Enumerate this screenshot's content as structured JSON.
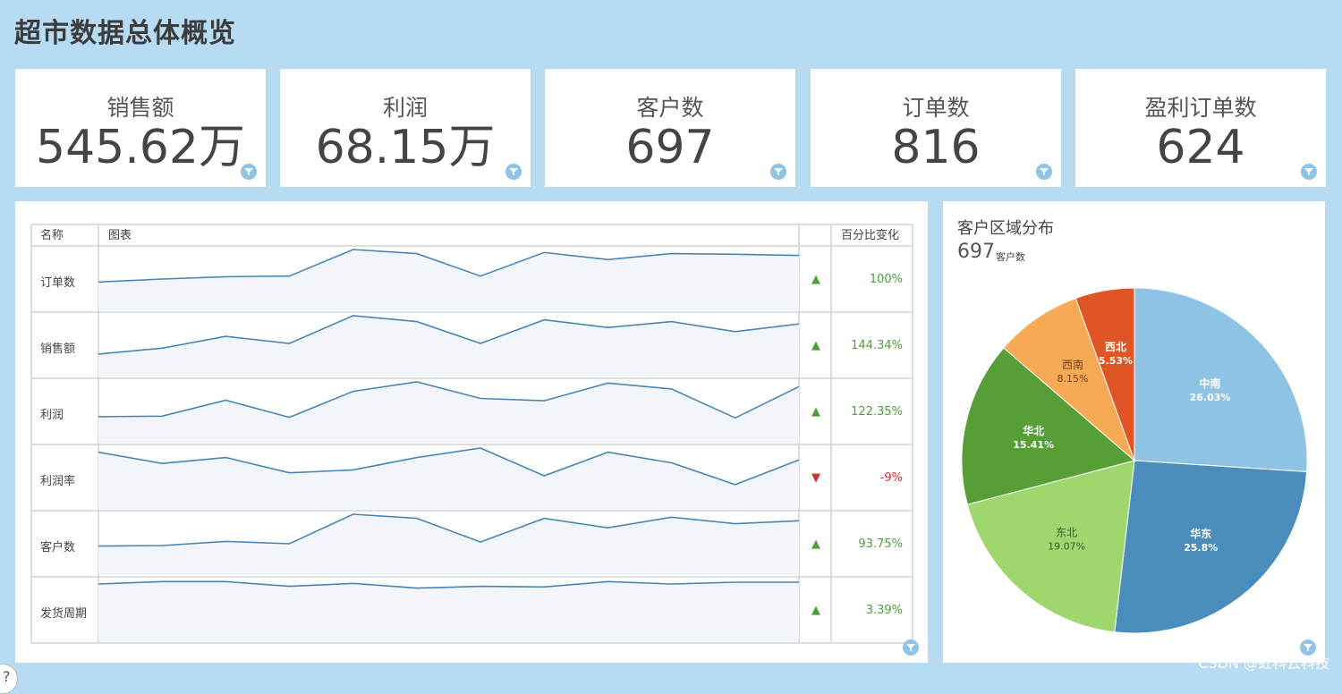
{
  "page": {
    "title": "超市数据总体概览"
  },
  "kpis": [
    {
      "label": "销售额",
      "value": "545.62万"
    },
    {
      "label": "利润",
      "value": "68.15万"
    },
    {
      "label": "客户数",
      "value": "697"
    },
    {
      "label": "订单数",
      "value": "816"
    },
    {
      "label": "盈利订单数",
      "value": "624"
    }
  ],
  "trend_table": {
    "headers": {
      "name": "名称",
      "chart": "图表",
      "change": "百分比变化"
    },
    "rows": [
      {
        "name": "订单数",
        "direction": "up",
        "arrow": "▲",
        "change": "100%",
        "points": [
          0.45,
          0.5,
          0.54,
          0.55,
          1.0,
          0.93,
          0.55,
          0.95,
          0.83,
          0.93,
          0.92,
          0.9
        ]
      },
      {
        "name": "销售额",
        "direction": "up",
        "arrow": "▲",
        "change": "144.34%",
        "points": [
          0.35,
          0.45,
          0.65,
          0.53,
          1.0,
          0.9,
          0.53,
          0.93,
          0.8,
          0.9,
          0.73,
          0.86
        ]
      },
      {
        "name": "利润",
        "direction": "up",
        "arrow": "▲",
        "change": "122.35%",
        "points": [
          0.41,
          0.42,
          0.69,
          0.4,
          0.84,
          1.0,
          0.72,
          0.68,
          0.98,
          0.88,
          0.39,
          0.92
        ]
      },
      {
        "name": "利润率",
        "direction": "down",
        "arrow": "▼",
        "change": "-9%",
        "points": [
          0.93,
          0.74,
          0.84,
          0.58,
          0.63,
          0.84,
          1.0,
          0.53,
          0.93,
          0.75,
          0.38,
          0.8
        ]
      },
      {
        "name": "客户数",
        "direction": "up",
        "arrow": "▲",
        "change": "93.75%",
        "points": [
          0.46,
          0.47,
          0.54,
          0.5,
          1.0,
          0.93,
          0.53,
          0.93,
          0.77,
          0.95,
          0.84,
          0.89
        ]
      },
      {
        "name": "发货周期",
        "direction": "up",
        "arrow": "▲",
        "change": "3.39%",
        "points": [
          0.94,
          0.98,
          0.98,
          0.9,
          0.95,
          0.87,
          0.9,
          0.89,
          0.98,
          0.94,
          0.97,
          0.97
        ]
      }
    ]
  },
  "chart_data": {
    "type": "pie",
    "title": "客户区域分布",
    "total": "697",
    "total_label": "客户数",
    "slices": [
      {
        "name": "中南",
        "pct": 26.03,
        "label": "26.03%",
        "color": "#8ec3e6"
      },
      {
        "name": "华东",
        "pct": 25.8,
        "label": "25.8%",
        "color": "#4a8dbd"
      },
      {
        "name": "东北",
        "pct": 19.07,
        "label": "19.07%",
        "color": "#9fd66e"
      },
      {
        "name": "华北",
        "pct": 15.41,
        "label": "15.41%",
        "color": "#569f36"
      },
      {
        "name": "西南",
        "pct": 8.15,
        "label": "8.15%",
        "color": "#f7aa55"
      },
      {
        "name": "西北",
        "pct": 5.53,
        "label": "5.53%",
        "color": "#e05526"
      }
    ]
  },
  "watermark": "CSDN @虹科云科技",
  "colors": {
    "background": "#b6dbf3",
    "line": "#4a86b5",
    "up": "#4f9e3c",
    "down": "#c9322d"
  }
}
